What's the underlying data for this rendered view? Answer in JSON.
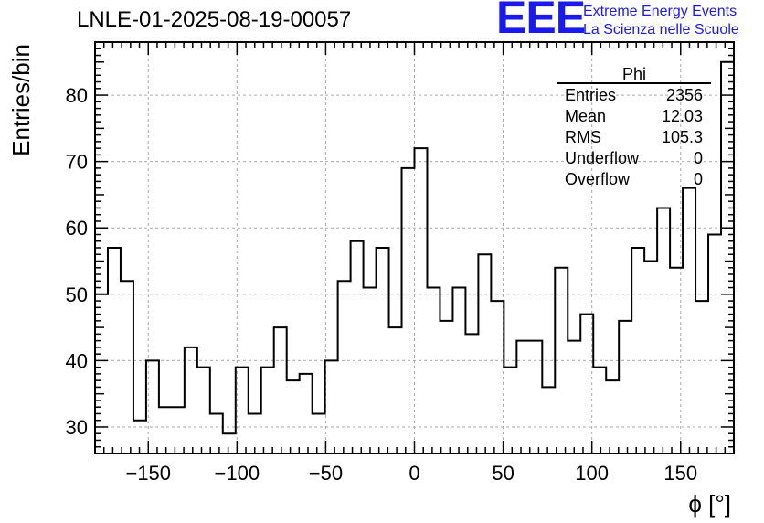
{
  "header": {
    "title": "LNLE-01-2025-08-19-00057",
    "logo_mark": "EEE",
    "logo_line1": "Extreme Energy Events",
    "logo_line2": "La Scienza nelle Scuole",
    "logo_color": "#1a1aee"
  },
  "stats_box": {
    "name": "Phi",
    "rows": [
      {
        "label": "Entries",
        "value": "2356"
      },
      {
        "label": "Mean",
        "value": "12.03"
      },
      {
        "label": "RMS",
        "value": "105.3"
      },
      {
        "label": "Underflow",
        "value": "0"
      },
      {
        "label": "Overflow",
        "value": "0"
      }
    ]
  },
  "chart_data": {
    "type": "histogram",
    "xlabel": "ϕ [°]",
    "ylabel": "Entries/bin",
    "xlim": [
      -180,
      180
    ],
    "ylim": [
      26,
      88
    ],
    "grid": true,
    "bin_width": 7.2,
    "x_ticks": [
      -150,
      -100,
      -50,
      0,
      50,
      100,
      150
    ],
    "x_tick_labels": [
      "−150",
      "−100",
      "−50",
      "0",
      "50",
      "100",
      "150"
    ],
    "y_ticks": [
      30,
      40,
      50,
      60,
      70,
      80
    ],
    "y_tick_labels": [
      "30",
      "40",
      "50",
      "60",
      "70",
      "80"
    ],
    "values": [
      50,
      57,
      52,
      31,
      40,
      33,
      33,
      42,
      39,
      32,
      29,
      39,
      32,
      39,
      45,
      37,
      38,
      32,
      40,
      52,
      58,
      51,
      57,
      45,
      69,
      72,
      51,
      46,
      51,
      44,
      56,
      49,
      39,
      43,
      43,
      36,
      54,
      43,
      47,
      39,
      37,
      46,
      57,
      55,
      63,
      54,
      66,
      49,
      59,
      85
    ],
    "line_color": "#000000"
  }
}
